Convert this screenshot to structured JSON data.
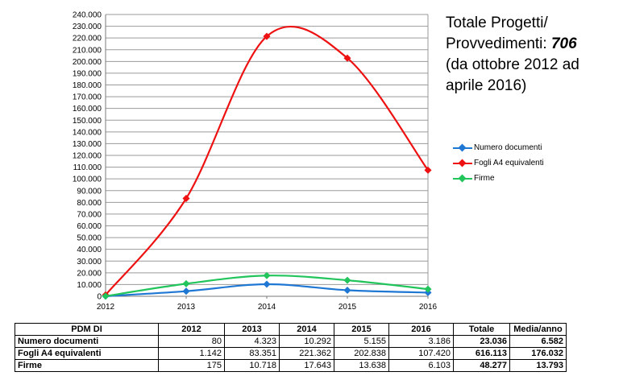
{
  "chart_data": {
    "type": "line",
    "x": [
      "2012",
      "2013",
      "2014",
      "2015",
      "2016"
    ],
    "ylim": [
      0,
      240000
    ],
    "y_ticks": [
      "0",
      "10.000",
      "20.000",
      "30.000",
      "40.000",
      "50.000",
      "60.000",
      "70.000",
      "80.000",
      "90.000",
      "100.000",
      "110.000",
      "120.000",
      "130.000",
      "140.000",
      "150.000",
      "160.000",
      "170.000",
      "180.000",
      "190.000",
      "200.000",
      "210.000",
      "220.000",
      "230.000",
      "240.000"
    ],
    "grid": true,
    "legend_position": "right",
    "series": [
      {
        "name": "Numero documenti",
        "color": "#1f77d4",
        "values": [
          80,
          4323,
          10292,
          5155,
          3186
        ]
      },
      {
        "name": "Fogli A4 equivalenti",
        "color": "#ee1111",
        "values": [
          1142,
          83351,
          221362,
          202838,
          107420
        ]
      },
      {
        "name": "Firme",
        "color": "#22c45c",
        "values": [
          175,
          10718,
          17643,
          13638,
          6103
        ]
      }
    ]
  },
  "info": {
    "line1": "Totale Progetti/",
    "line2_prefix": "Provvedimenti: ",
    "line2_value": "706",
    "line3": "(da ottobre 2012 ad",
    "line4": "aprile 2016)"
  },
  "table": {
    "header": [
      "PDM DI",
      "2012",
      "2013",
      "2014",
      "2015",
      "2016",
      "Totale",
      "Media/anno"
    ],
    "rows": [
      {
        "label": "Numero documenti",
        "cells": [
          "80",
          "4.323",
          "10.292",
          "5.155",
          "3.186",
          "23.036",
          "6.582"
        ]
      },
      {
        "label": "Fogli A4 equivalenti",
        "cells": [
          "1.142",
          "83.351",
          "221.362",
          "202.838",
          "107.420",
          "616.113",
          "176.032"
        ]
      },
      {
        "label": "Firme",
        "cells": [
          "175",
          "10.718",
          "17.643",
          "13.638",
          "6.103",
          "48.277",
          "13.793"
        ]
      }
    ]
  }
}
